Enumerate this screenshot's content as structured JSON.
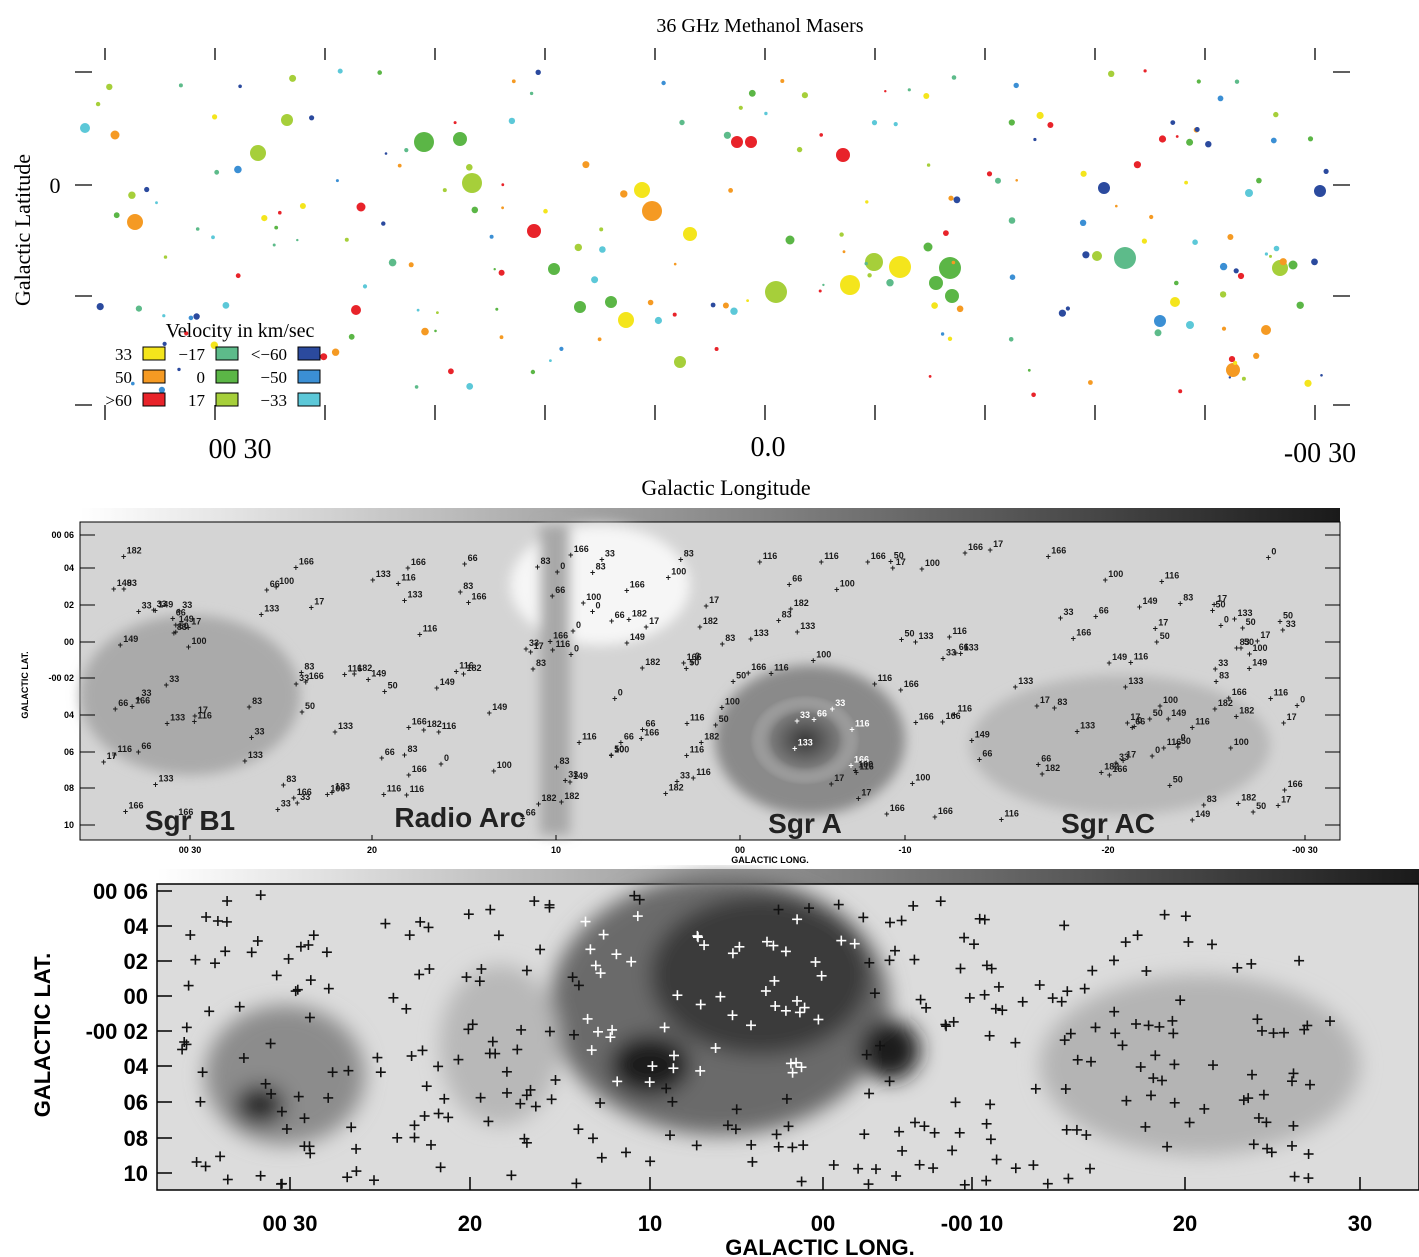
{
  "chart_data": [
    {
      "type": "scatter",
      "title": "36 GHz Methanol Masers",
      "xlabel": "Galactic Longitude",
      "ylabel": "Galactic Latitude",
      "x_ticks": [
        "00 30",
        "0.0",
        "-00 30"
      ],
      "y_ticks": [
        "0"
      ],
      "legend": {
        "title": "Velocity in km/sec",
        "entries": [
          {
            "label": "33",
            "color": "#f4e51c"
          },
          {
            "label": "50",
            "color": "#f59a23"
          },
          {
            "label": ">60",
            "color": "#e8232a"
          },
          {
            "label": "−17",
            "color": "#5dbb8a"
          },
          {
            "label": "0",
            "color": "#5bb646"
          },
          {
            "label": "17",
            "color": "#a6cf3a"
          },
          {
            "label": "<−60",
            "color": "#2b4a9e"
          },
          {
            "label": "−50",
            "color": "#3b8fd4"
          },
          {
            "label": "−33",
            "color": "#5cc8d8"
          }
        ]
      },
      "grid": false,
      "note_sizes": "marker size indicates relative intensity"
    },
    {
      "type": "scatter",
      "xlabel": "GALACTIC LONG.",
      "ylabel": "GALACTIC LAT.",
      "x_ticks": [
        "00 30",
        "20",
        "10",
        "00",
        "-10",
        "-20",
        "-00 30"
      ],
      "y_ticks": [
        "00 06",
        "04",
        "02",
        "00",
        "-00 02",
        "04",
        "06",
        "08",
        "10"
      ],
      "region_labels": [
        "Sgr B1",
        "Radio Arc",
        "Sgr A",
        "Sgr AC"
      ],
      "point_labels_sample": [
        "33",
        "50",
        "17",
        "100",
        "116",
        "83",
        "66",
        "0",
        "133",
        "149",
        "166",
        "182"
      ]
    },
    {
      "type": "scatter",
      "xlabel": "GALACTIC LONG.",
      "ylabel": "GALACTIC LAT.",
      "x_ticks": [
        "00 30",
        "20",
        "10",
        "00",
        "-00 10",
        "20",
        "30"
      ],
      "y_ticks": [
        "00 06",
        "04",
        "02",
        "00",
        "-00 02",
        "04",
        "06",
        "08",
        "10"
      ]
    }
  ]
}
